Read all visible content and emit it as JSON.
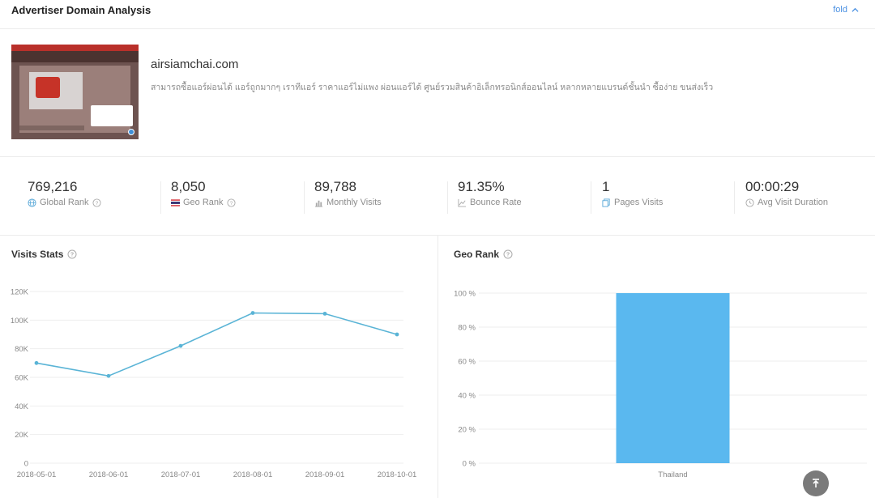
{
  "header": {
    "title": "Advertiser Domain Analysis",
    "fold_label": "fold"
  },
  "domain": {
    "name": "airsiamchai.com",
    "description": "สามารถซื้อแอร์ผ่อนได้ แอร์ถูกมากๆ เราทีแอร์ ราคาแอร์ไม่แพง ผ่อนแอร์ได้ ศูนย์รวมสินค้าอิเล็กทรอนิกส์ออนไลน์ หลากหลายแบรนด์ชั้นนำ ซื้อง่าย ขนส่งเร็ว"
  },
  "stats": [
    {
      "value": "769,216",
      "label": "Global Rank",
      "icon": "globe-icon"
    },
    {
      "value": "8,050",
      "label": "Geo Rank",
      "icon": "thailand-flag-icon"
    },
    {
      "value": "89,788",
      "label": "Monthly Visits",
      "icon": "bar-chart-icon"
    },
    {
      "value": "91.35%",
      "label": "Bounce Rate",
      "icon": "line-chart-icon"
    },
    {
      "value": "1",
      "label": "Pages Visits",
      "icon": "pages-icon"
    },
    {
      "value": "00:00:29",
      "label": "Avg Visit Duration",
      "icon": "clock-icon"
    }
  ],
  "visits_panel": {
    "title": "Visits Stats"
  },
  "geo_panel": {
    "title": "Geo Rank"
  },
  "colors": {
    "accent": "#4a90e2",
    "line": "#5ab4d6",
    "bar": "#5ab8ef",
    "grid": "#eeeeee",
    "tick": "#888888"
  },
  "chart_data": [
    {
      "type": "line",
      "x": [
        "2018-05-01",
        "2018-06-01",
        "2018-07-01",
        "2018-08-01",
        "2018-09-01",
        "2018-10-01"
      ],
      "series": [
        {
          "values": [
            70000,
            61000,
            82000,
            105000,
            104500,
            90000
          ]
        }
      ],
      "ylim": [
        0,
        120000
      ],
      "yticks": [
        0,
        20000,
        40000,
        60000,
        80000,
        100000,
        120000
      ],
      "ytick_labels": [
        "0",
        "20K",
        "40K",
        "60K",
        "80K",
        "100K",
        "120K"
      ],
      "grid": true
    },
    {
      "type": "bar",
      "categories": [
        "Thailand"
      ],
      "values": [
        100
      ],
      "ylim": [
        0,
        100
      ],
      "yticks": [
        0,
        20,
        40,
        60,
        80,
        100
      ],
      "ytick_labels": [
        "0 %",
        "20 %",
        "40 %",
        "60 %",
        "80 %",
        "100 %"
      ],
      "grid": true
    }
  ]
}
